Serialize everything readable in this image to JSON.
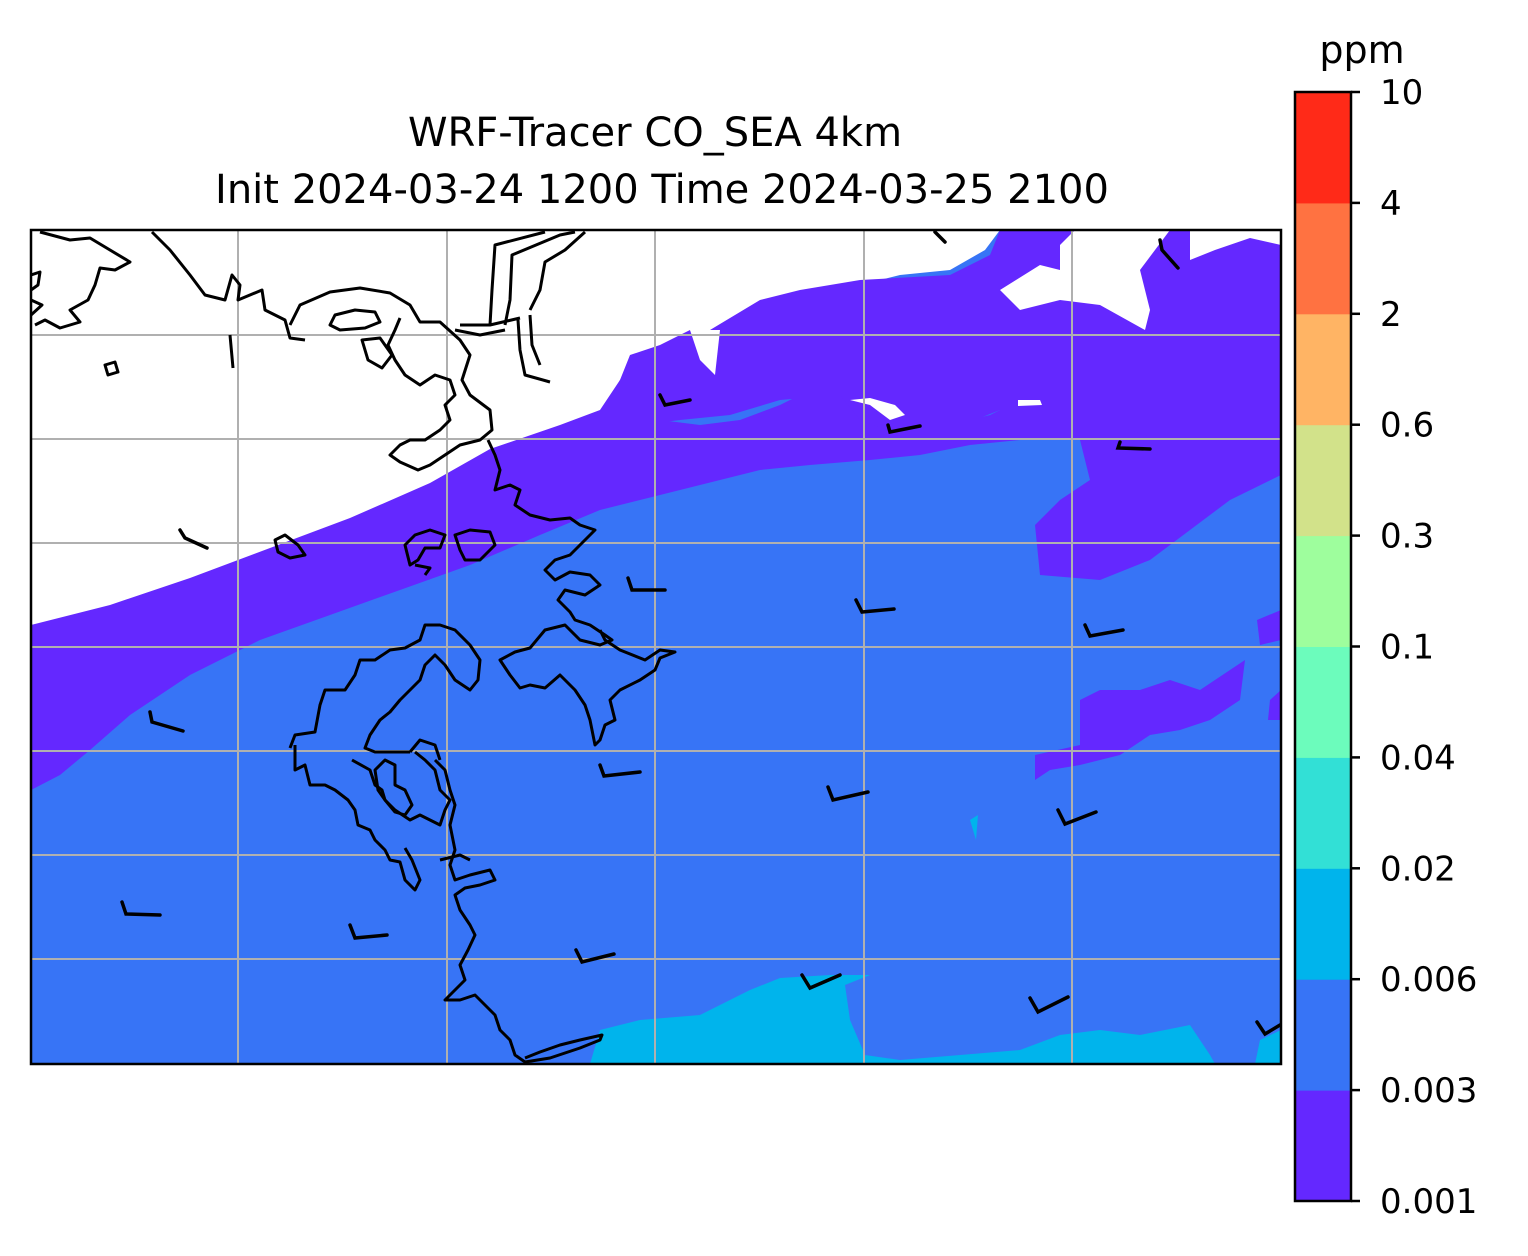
{
  "figure": {
    "title_line1": "WRF-Tracer CO_SEA 4km",
    "title_line2": "Init 2024-03-24 1200 Time 2024-03-25 2100"
  },
  "colorbar": {
    "unit": "ppm",
    "levels": [
      "0.001",
      "0.003",
      "0.006",
      "0.02",
      "0.04",
      "0.1",
      "0.3",
      "0.6",
      "2",
      "4",
      "10"
    ],
    "colors": [
      "#6428ff",
      "#3774f6",
      "#00b4ec",
      "#32e0d6",
      "#6cfcbc",
      "#9efe9d",
      "#d2e28a",
      "#ffb464",
      "#ff7241",
      "#ff2a18"
    ]
  },
  "map": {
    "no_data_color": "#ffffff",
    "grid": true,
    "grid_color": "#b0b0b0",
    "coastline_color": "#000000",
    "wind_barbs": true
  },
  "chart_data": {
    "type": "heatmap",
    "title": "WRF-Tracer CO_SEA 4km\nInit 2024-03-24 1200 Time 2024-03-25 2100",
    "variable": "CO tracer concentration",
    "unit": "ppm",
    "levels": [
      0.001,
      0.003,
      0.006,
      0.02,
      0.04,
      0.1,
      0.3,
      0.6,
      2,
      4,
      10
    ],
    "regions": [
      {
        "range": [
          0.001,
          0.003
        ],
        "location": "northwest band below blank area, northeast patches"
      },
      {
        "range": [
          0.003,
          0.006
        ],
        "location": "most of the domain (central and southern)"
      },
      {
        "range": [
          0.006,
          0.02
        ],
        "location": "southern edge, south-central and southeast"
      }
    ],
    "grid": true
  }
}
